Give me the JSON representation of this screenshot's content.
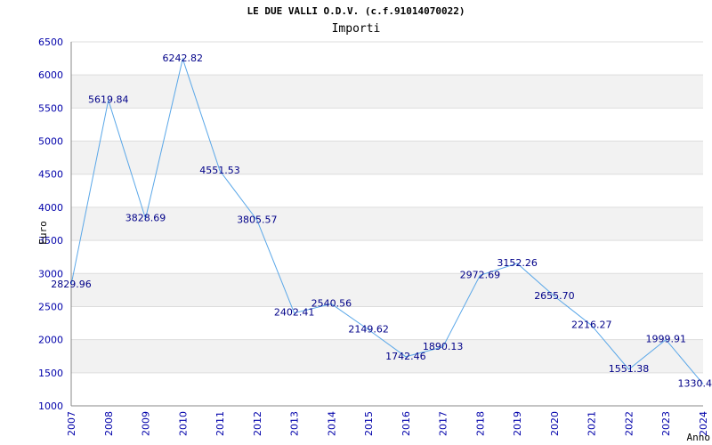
{
  "chart_data": {
    "type": "line",
    "title": "LE DUE VALLI O.D.V. (c.f.91014070022)",
    "subtitle": "Importi",
    "xlabel": "Anno",
    "ylabel": "Euro",
    "ylim": [
      1000,
      6500
    ],
    "yticks": [
      1000,
      1500,
      2000,
      2500,
      3000,
      3500,
      4000,
      4500,
      5000,
      5500,
      6000,
      6500
    ],
    "x": [
      "2007",
      "2008",
      "2009",
      "2010",
      "2011",
      "2012",
      "2013",
      "2014",
      "2015",
      "2016",
      "2017",
      "2018",
      "2019",
      "2020",
      "2021",
      "2022",
      "2023",
      "2024"
    ],
    "values": [
      2829.96,
      5619.84,
      3828.69,
      6242.82,
      4551.53,
      3805.57,
      2402.41,
      2540.56,
      2149.62,
      1742.46,
      1890.13,
      2972.69,
      3152.26,
      2655.7,
      2216.27,
      1551.38,
      1999.91,
      1330.4
    ],
    "labels": [
      "2829.96",
      "5619.84",
      "3828.69",
      "6242.82",
      "4551.53",
      "3805.57",
      "2402.41",
      "2540.56",
      "2149.62",
      "1742.46",
      "1890.13",
      "2972.69",
      "3152.26",
      "2655.70",
      "2216.27",
      "1551.38",
      "1999.91",
      "1330.4"
    ],
    "grid": true,
    "colors": {
      "line": "#5aa7e8",
      "axis_text": "#0000aa",
      "label_text": "#000088",
      "band": "#f2f2f2",
      "grid": "#dddddd"
    }
  }
}
